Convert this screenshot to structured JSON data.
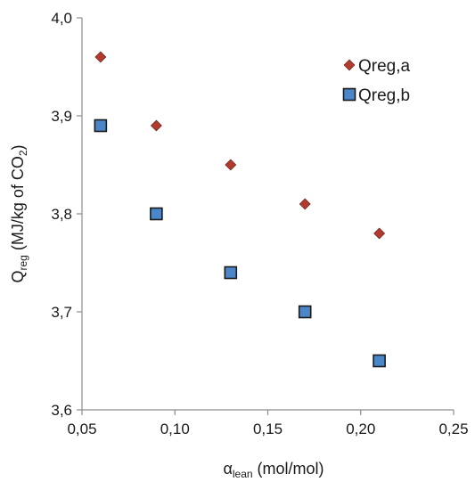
{
  "chart_data": {
    "type": "scatter",
    "xlabel": {
      "main": "α",
      "sub": "lean",
      "rest": " (mol/mol)"
    },
    "ylabel": {
      "main": "Q",
      "sub": "reg",
      "rest1": " (MJ/kg of CO",
      "sub2": "2",
      "rest2": ")"
    },
    "xlim": [
      0.05,
      0.25
    ],
    "ylim": [
      3.6,
      4.0
    ],
    "x_ticks": [
      "0,05",
      "0,10",
      "0,15",
      "0,20",
      "0,25"
    ],
    "y_ticks": [
      "3,6",
      "3,7",
      "3,8",
      "3,9",
      "4,0"
    ],
    "grid": false,
    "legend_position": "top-right",
    "series": [
      {
        "name": "Qreg,a",
        "marker": "diamond",
        "color": "#b23a2e",
        "x": [
          0.06,
          0.09,
          0.13,
          0.17,
          0.21
        ],
        "y": [
          3.96,
          3.89,
          3.85,
          3.81,
          3.78
        ]
      },
      {
        "name": "Qreg,b",
        "marker": "square",
        "color": "#4a86c8",
        "x": [
          0.06,
          0.09,
          0.13,
          0.17,
          0.21
        ],
        "y": [
          3.89,
          3.8,
          3.74,
          3.7,
          3.65
        ]
      }
    ]
  }
}
